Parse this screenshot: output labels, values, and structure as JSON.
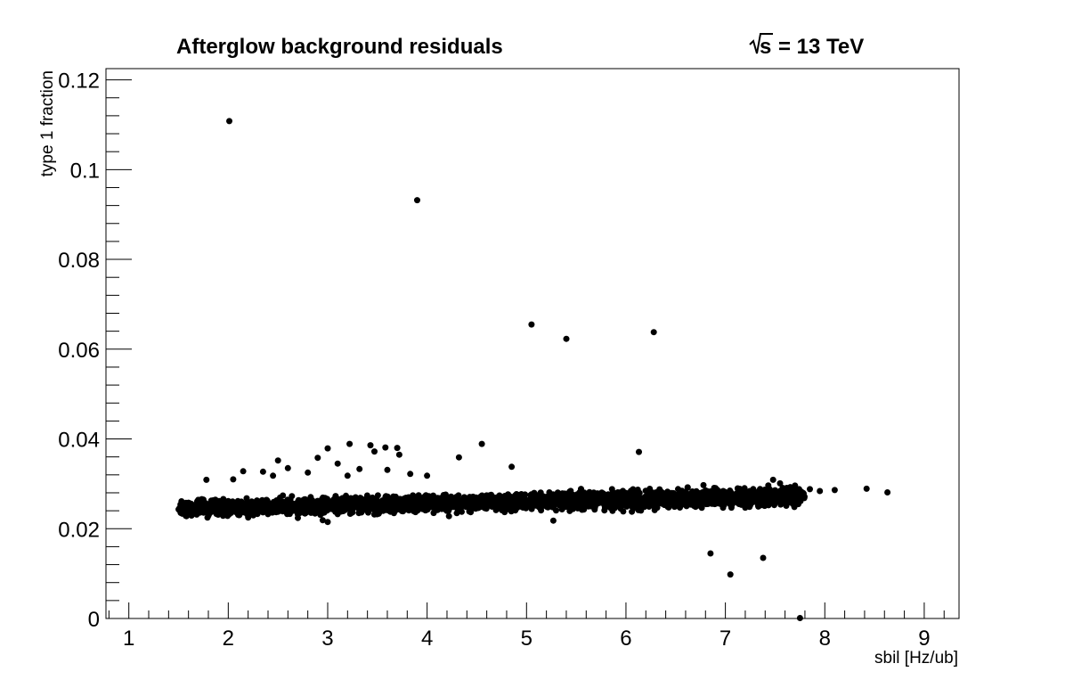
{
  "chart_data": {
    "type": "scatter",
    "title": "Afterglow background residuals",
    "energy_label": "= 13 TeV",
    "xlabel": "sbil [Hz/ub]",
    "ylabel": "type 1 fraction",
    "xlim": [
      0.77,
      9.35
    ],
    "ylim": [
      0,
      0.1225
    ],
    "x_ticks": [
      "1",
      "2",
      "3",
      "4",
      "5",
      "6",
      "7",
      "8",
      "9"
    ],
    "y_ticks": [
      "0",
      "0.02",
      "0.04",
      "0.06",
      "0.08",
      "0.1",
      "0.12"
    ],
    "x_tick_values": [
      1,
      2,
      3,
      4,
      5,
      6,
      7,
      8,
      9
    ],
    "y_tick_values": [
      0,
      0.02,
      0.04,
      0.06,
      0.08,
      0.1,
      0.12
    ],
    "grid": false,
    "marker_color": "#000000",
    "points": [
      [
        2.01,
        0.1108
      ],
      [
        3.9,
        0.0932
      ],
      [
        5.05,
        0.0655
      ],
      [
        5.4,
        0.0623
      ],
      [
        6.28,
        0.0638
      ],
      [
        6.13,
        0.0371
      ],
      [
        4.55,
        0.0389
      ],
      [
        4.32,
        0.0359
      ],
      [
        4.85,
        0.0338
      ],
      [
        3.22,
        0.0389
      ],
      [
        3.43,
        0.0386
      ],
      [
        3.58,
        0.0381
      ],
      [
        3.7,
        0.038
      ],
      [
        3.0,
        0.0379
      ],
      [
        2.9,
        0.0358
      ],
      [
        3.47,
        0.0372
      ],
      [
        3.72,
        0.0365
      ],
      [
        3.1,
        0.0345
      ],
      [
        2.5,
        0.0352
      ],
      [
        2.6,
        0.0335
      ],
      [
        2.35,
        0.0327
      ],
      [
        2.15,
        0.0328
      ],
      [
        3.32,
        0.0333
      ],
      [
        3.6,
        0.0331
      ],
      [
        3.83,
        0.0322
      ],
      [
        2.45,
        0.0318
      ],
      [
        1.78,
        0.0309
      ],
      [
        2.05,
        0.031
      ],
      [
        2.8,
        0.0325
      ],
      [
        3.2,
        0.0318
      ],
      [
        4.0,
        0.0318
      ],
      [
        6.85,
        0.0145
      ],
      [
        7.05,
        0.0098
      ],
      [
        7.38,
        0.0135
      ],
      [
        7.75,
        0.0001
      ],
      [
        8.42,
        0.0289
      ],
      [
        8.63,
        0.0281
      ],
      [
        8.1,
        0.0286
      ],
      [
        7.95,
        0.0284
      ],
      [
        7.85,
        0.0288
      ],
      [
        7.7,
        0.0296
      ],
      [
        7.55,
        0.0301
      ],
      [
        7.4,
        0.0262
      ],
      [
        7.35,
        0.0252
      ],
      [
        7.2,
        0.0247
      ],
      [
        1.52,
        0.0254
      ],
      [
        1.55,
        0.0245
      ],
      [
        1.58,
        0.0228
      ],
      [
        1.6,
        0.0258
      ],
      [
        1.65,
        0.0242
      ],
      [
        1.7,
        0.0249
      ],
      [
        1.75,
        0.0236
      ],
      [
        1.8,
        0.0229
      ],
      [
        1.85,
        0.0251
      ],
      [
        1.9,
        0.0243
      ],
      [
        1.95,
        0.0266
      ],
      [
        2.2,
        0.0225
      ],
      [
        2.3,
        0.0258
      ],
      [
        2.55,
        0.0274
      ],
      [
        2.7,
        0.0224
      ],
      [
        2.95,
        0.0219
      ],
      [
        3.0,
        0.0215
      ],
      [
        5.27,
        0.0218
      ],
      [
        6.62,
        0.0292
      ],
      [
        7.48,
        0.0309
      ],
      [
        7.62,
        0.0275
      ],
      [
        6.78,
        0.0297
      ],
      [
        5.86,
        0.0288
      ],
      [
        4.78,
        0.0237
      ],
      [
        4.22,
        0.0228
      ]
    ],
    "band": {
      "x_range": [
        1.5,
        7.8
      ],
      "center_start": 0.0245,
      "center_end": 0.0272,
      "half_width_start": 0.0016,
      "half_width_end": 0.0018,
      "count": 3000
    }
  }
}
